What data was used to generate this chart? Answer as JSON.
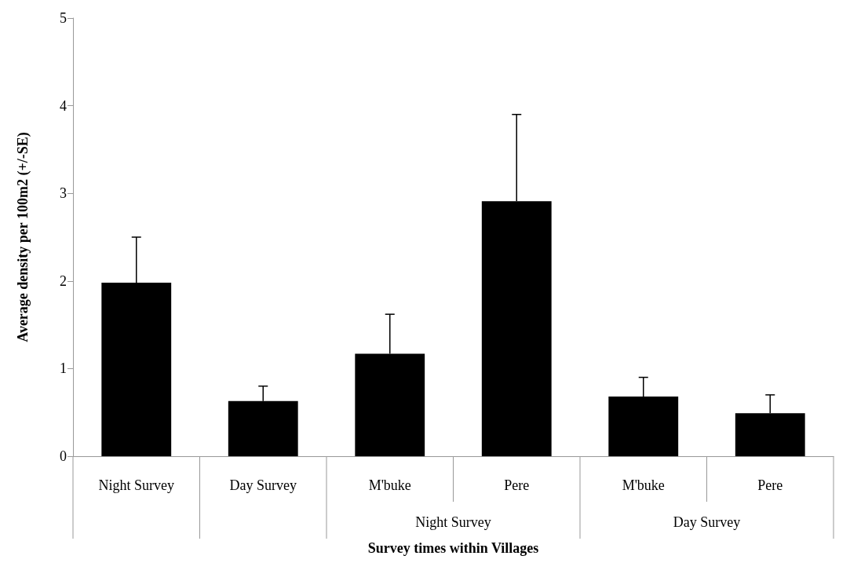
{
  "chart_data": {
    "type": "bar",
    "xlabel": "Survey times within Villages",
    "ylabel": "Average density per 100m2 (+/-SE)",
    "categories": [
      "Night Survey",
      "Day Survey",
      "M'buke",
      "Pere",
      "M'buke",
      "Pere"
    ],
    "values": [
      1.98,
      0.63,
      1.17,
      2.91,
      0.68,
      0.49
    ],
    "color": "#000000",
    "errors": [
      [
        1.98,
        2.5
      ],
      [
        0.63,
        0.8
      ],
      [
        1.17,
        1.62
      ],
      [
        2.91,
        3.9
      ],
      [
        0.68,
        0.9
      ],
      [
        0.49,
        0.7
      ]
    ],
    "annotations": [
      "Night Survey",
      "Day Survey"
    ],
    "ylim": [
      0,
      5
    ],
    "yticks": [
      0,
      1,
      2,
      3,
      4,
      5
    ],
    "grid": false
  }
}
